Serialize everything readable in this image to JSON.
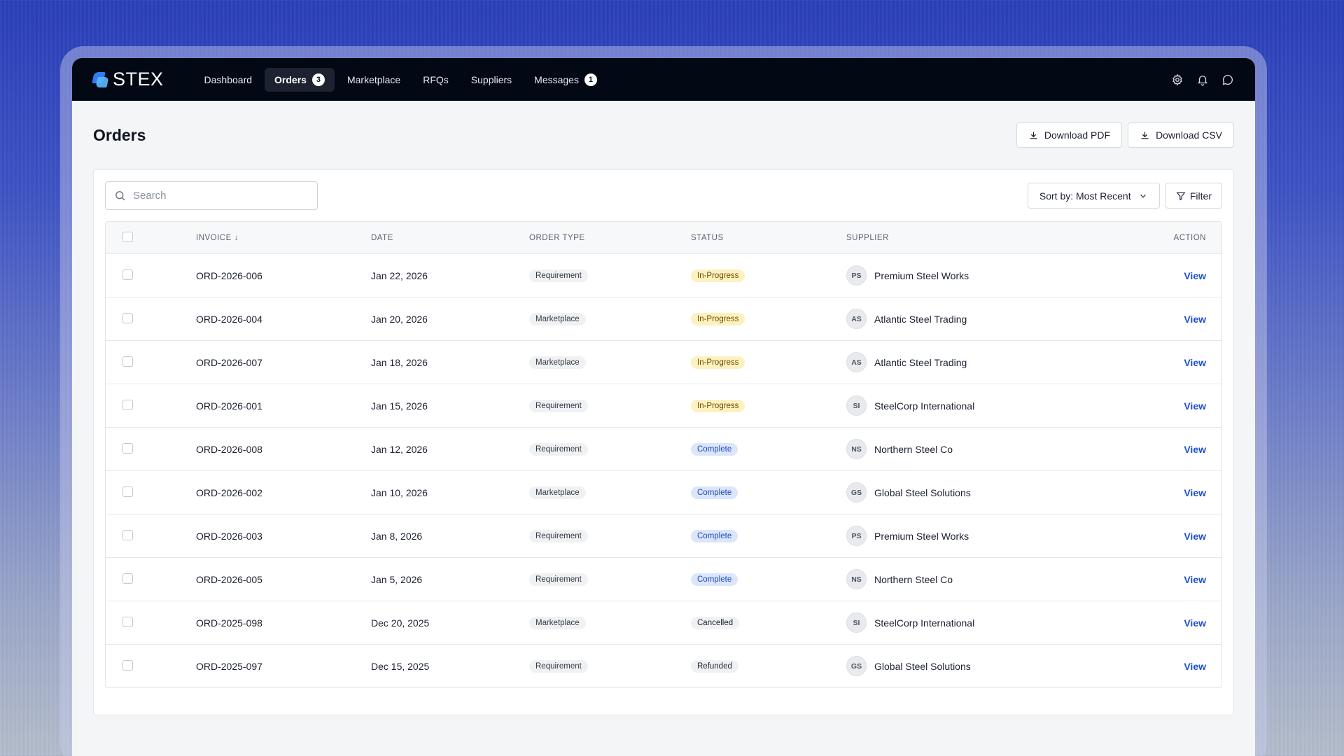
{
  "app": {
    "logo_text": "STEX"
  },
  "nav": {
    "items": [
      {
        "label": "Dashboard"
      },
      {
        "label": "Orders",
        "badge": "3",
        "active": true
      },
      {
        "label": "Marketplace"
      },
      {
        "label": "RFQs"
      },
      {
        "label": "Suppliers"
      },
      {
        "label": "Messages",
        "badge": "1"
      }
    ],
    "icons": [
      "gear-icon",
      "bell-icon",
      "chat-icon"
    ]
  },
  "page": {
    "title": "Orders",
    "download_pdf": "Download PDF",
    "download_csv": "Download CSV"
  },
  "toolbar": {
    "search_placeholder": "Search",
    "sort_label": "Sort by: Most Recent",
    "filter_label": "Filter"
  },
  "table": {
    "headers": {
      "invoice": "INVOICE",
      "sort_indicator": "↓",
      "date": "DATE",
      "order_type": "ORDER TYPE",
      "status": "STATUS",
      "supplier": "SUPPLIER",
      "action": "ACTION"
    },
    "rows": [
      {
        "invoice": "ORD-2026-006",
        "date": "Jan 22, 2026",
        "type": "Requirement",
        "status": "In-Progress",
        "initials": "PS",
        "supplier": "Premium Steel Works",
        "action": "View"
      },
      {
        "invoice": "ORD-2026-004",
        "date": "Jan 20, 2026",
        "type": "Marketplace",
        "status": "In-Progress",
        "initials": "AS",
        "supplier": "Atlantic Steel Trading",
        "action": "View"
      },
      {
        "invoice": "ORD-2026-007",
        "date": "Jan 18, 2026",
        "type": "Marketplace",
        "status": "In-Progress",
        "initials": "AS",
        "supplier": "Atlantic Steel Trading",
        "action": "View"
      },
      {
        "invoice": "ORD-2026-001",
        "date": "Jan 15, 2026",
        "type": "Requirement",
        "status": "In-Progress",
        "initials": "SI",
        "supplier": "SteelCorp International",
        "action": "View"
      },
      {
        "invoice": "ORD-2026-008",
        "date": "Jan 12, 2026",
        "type": "Requirement",
        "status": "Complete",
        "initials": "NS",
        "supplier": "Northern Steel Co",
        "action": "View"
      },
      {
        "invoice": "ORD-2026-002",
        "date": "Jan 10, 2026",
        "type": "Marketplace",
        "status": "Complete",
        "initials": "GS",
        "supplier": "Global Steel Solutions",
        "action": "View"
      },
      {
        "invoice": "ORD-2026-003",
        "date": "Jan 8, 2026",
        "type": "Requirement",
        "status": "Complete",
        "initials": "PS",
        "supplier": "Premium Steel Works",
        "action": "View"
      },
      {
        "invoice": "ORD-2026-005",
        "date": "Jan 5, 2026",
        "type": "Requirement",
        "status": "Complete",
        "initials": "NS",
        "supplier": "Northern Steel Co",
        "action": "View"
      },
      {
        "invoice": "ORD-2025-098",
        "date": "Dec 20, 2025",
        "type": "Marketplace",
        "status": "Cancelled",
        "initials": "SI",
        "supplier": "SteelCorp International",
        "action": "View"
      },
      {
        "invoice": "ORD-2025-097",
        "date": "Dec 15, 2025",
        "type": "Requirement",
        "status": "Refunded",
        "initials": "GS",
        "supplier": "Global Steel Solutions",
        "action": "View"
      }
    ]
  },
  "colors": {
    "topbar": "#020814",
    "link": "#1f4fd6",
    "in_progress_bg": "#fdf1bf",
    "complete_bg": "#dbe6fb"
  }
}
